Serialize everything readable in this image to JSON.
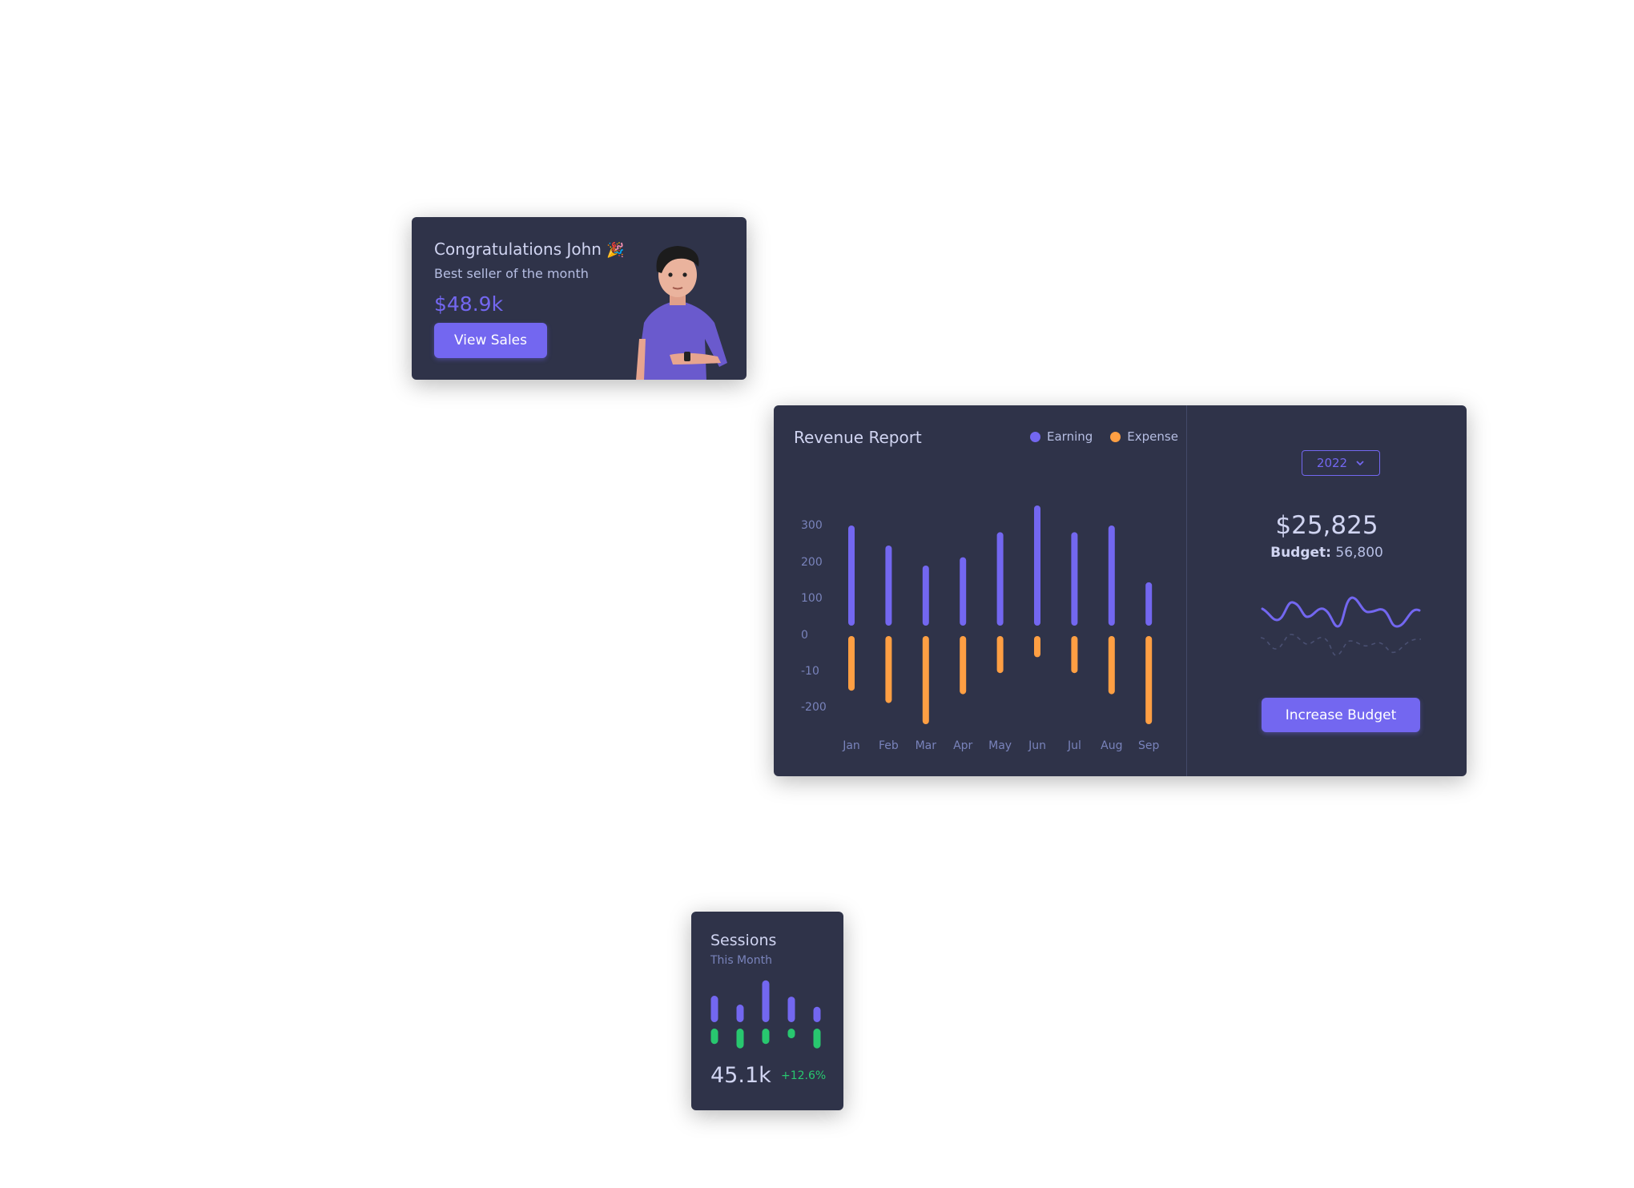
{
  "congrats": {
    "title": "Congratulations John",
    "emoji": "🎉",
    "subtitle": "Best seller of the month",
    "amount": "$48.9k",
    "button_label": "View Sales"
  },
  "revenue": {
    "title": "Revenue Report",
    "legend": [
      {
        "label": "Earning",
        "color": "#7367f0"
      },
      {
        "label": "Expense",
        "color": "#ff9f43"
      }
    ],
    "year_select": "2022",
    "total": "$25,825",
    "budget_label": "Budget:",
    "budget_value": "56,800",
    "button_label": "Increase Budget"
  },
  "chart_data": {
    "type": "bar",
    "categories": [
      "Jan",
      "Feb",
      "Mar",
      "Apr",
      "May",
      "Jun",
      "Jul",
      "Aug",
      "Sep"
    ],
    "y_tick_labels": [
      "300",
      "200",
      "100",
      "0",
      "-10",
      "-200"
    ],
    "series": [
      {
        "name": "Earning",
        "color": "#7367f0",
        "values": [
          300,
          240,
          180,
          205,
          280,
          360,
          280,
          300,
          130
        ]
      },
      {
        "name": "Expense",
        "color": "#ff9f43",
        "values": [
          -155,
          -190,
          -250,
          -165,
          -105,
          -60,
          -105,
          -165,
          -250
        ]
      }
    ],
    "grid": false,
    "legend_position": "top-right"
  },
  "sessions": {
    "title": "Sessions",
    "subtitle": "This Month",
    "value": "45.1k",
    "change": "+12.6%",
    "bars_top": [
      60,
      40,
      95,
      58,
      35
    ],
    "bars_bottom": [
      35,
      45,
      35,
      22,
      45
    ],
    "top_color": "#7367f0",
    "bottom_color": "#28c76f",
    "change_color": "#28c76f"
  }
}
